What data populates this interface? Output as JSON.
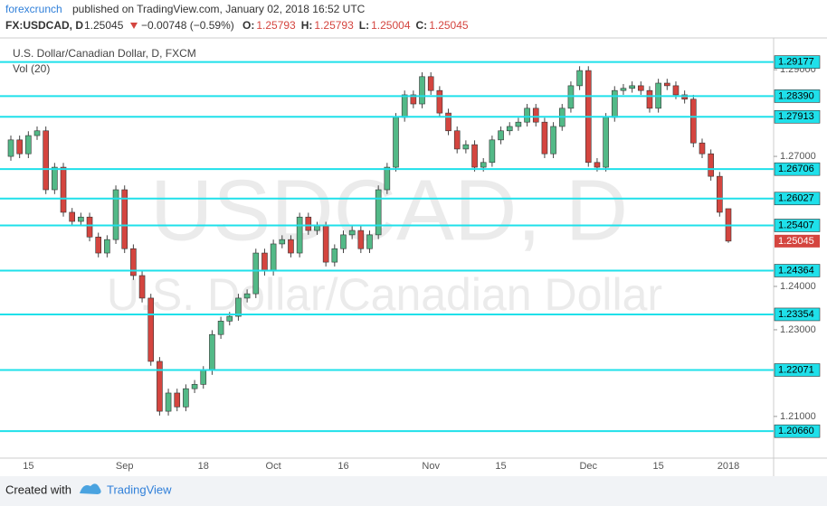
{
  "header": {
    "author": "forexcrunch",
    "published": "published on TradingView.com, January 02, 2018 16:52 UTC",
    "symbol": "FX:USDCAD, D",
    "last": "1.25045",
    "change": "−0.00748 (−0.59%)",
    "ohlc": [
      {
        "key": "O:",
        "value": "1.25793"
      },
      {
        "key": "H:",
        "value": "1.25793"
      },
      {
        "key": "L:",
        "value": "1.25004"
      },
      {
        "key": "C:",
        "value": "1.25045"
      }
    ]
  },
  "chart_data": {
    "type": "candlestick",
    "title": "U.S. Dollar/Canadian Dollar, D, FXCM",
    "subtitle": "Vol (20)",
    "watermark": [
      "USDCAD, D",
      "U.S. Dollar/Canadian Dollar"
    ],
    "up_color": "#53b987",
    "down_color": "#d4453f",
    "level_color": "#1fe0ea",
    "ylim": [
      1.2008,
      1.2967
    ],
    "yticks": [
      {
        "value": 1.29,
        "label": "1.29000"
      },
      {
        "value": 1.27,
        "label": "1.27000"
      },
      {
        "value": 1.24,
        "label": "1.24000"
      },
      {
        "value": 1.23,
        "label": "1.23000"
      },
      {
        "value": 1.21,
        "label": "1.21000"
      }
    ],
    "levels": [
      1.29177,
      {
        "value": 1.2839,
        "label": "1.28390"
      },
      1.27913,
      1.26706,
      1.26027,
      1.25407,
      1.24364,
      1.23354,
      1.22071,
      {
        "value": 1.2066,
        "label": "1.20660"
      }
    ],
    "categories": [
      null,
      null,
      "15",
      null,
      null,
      null,
      null,
      null,
      null,
      null,
      null,
      null,
      null,
      "Sep",
      null,
      null,
      null,
      null,
      null,
      null,
      null,
      null,
      "18",
      null,
      null,
      null,
      null,
      null,
      null,
      null,
      "Oct",
      null,
      null,
      null,
      null,
      null,
      null,
      null,
      "16",
      null,
      null,
      null,
      null,
      null,
      null,
      null,
      null,
      null,
      "Nov",
      null,
      null,
      null,
      null,
      null,
      null,
      null,
      "15",
      null,
      null,
      null,
      null,
      null,
      null,
      null,
      null,
      null,
      "Dec",
      null,
      null,
      null,
      null,
      null,
      null,
      null,
      "15",
      null,
      null,
      null,
      null,
      null,
      null,
      null,
      "2018"
    ],
    "open": [
      1.27,
      1.2738,
      1.2706,
      1.2748,
      1.2759,
      1.2623,
      1.2675,
      1.2571,
      1.255,
      1.256,
      1.2514,
      1.2477,
      1.2508,
      1.2623,
      1.2487,
      1.2425,
      1.2373,
      1.2227,
      1.2112,
      1.2154,
      1.2122,
      1.2164,
      1.2174,
      1.2206,
      1.2289,
      1.232,
      1.2331,
      1.2373,
      1.2383,
      1.2477,
      1.2435,
      1.2498,
      1.2508,
      1.2477,
      1.256,
      1.2529,
      1.2539,
      1.2456,
      1.2487,
      1.2519,
      1.2529,
      1.2487,
      1.2519,
      1.2623,
      1.2675,
      1.279,
      1.2842,
      1.2821,
      1.2884,
      1.2852,
      1.28,
      1.2759,
      1.2717,
      1.2727,
      1.2675,
      1.2686,
      1.2738,
      1.2759,
      1.2769,
      1.2779,
      1.2811,
      1.2779,
      1.2706,
      1.2769,
      1.2811,
      1.2863,
      1.2898,
      1.2686,
      1.2675,
      1.279,
      1.2852,
      1.2857,
      1.2863,
      1.2852,
      1.2811,
      1.2869,
      1.2863,
      1.2842,
      1.2832,
      1.2731,
      1.2706,
      1.2654,
      1.25793
    ],
    "high": [
      1.2748,
      1.2748,
      1.2758,
      1.2769,
      1.2769,
      1.2685,
      1.2685,
      1.2581,
      1.257,
      1.257,
      1.2524,
      1.2518,
      1.2633,
      1.2633,
      1.2497,
      1.2435,
      1.2383,
      1.2237,
      1.2164,
      1.2164,
      1.2174,
      1.2184,
      1.2216,
      1.2299,
      1.233,
      1.2341,
      1.2383,
      1.2393,
      1.2487,
      1.2487,
      1.2508,
      1.2518,
      1.2518,
      1.257,
      1.257,
      1.2549,
      1.2549,
      1.2497,
      1.2529,
      1.2539,
      1.2539,
      1.2529,
      1.2633,
      1.2685,
      1.28,
      1.2852,
      1.2852,
      1.2894,
      1.2894,
      1.2862,
      1.281,
      1.2769,
      1.2737,
      1.2737,
      1.2696,
      1.2748,
      1.2769,
      1.2779,
      1.2789,
      1.2821,
      1.2821,
      1.2789,
      1.2779,
      1.2821,
      1.2873,
      1.2908,
      1.2908,
      1.2696,
      1.28,
      1.2862,
      1.2867,
      1.2873,
      1.2873,
      1.2862,
      1.2879,
      1.2879,
      1.2873,
      1.2852,
      1.2842,
      1.2741,
      1.2716,
      1.2664,
      1.25793
    ],
    "low": [
      1.269,
      1.2696,
      1.2696,
      1.2738,
      1.2613,
      1.2613,
      1.2561,
      1.254,
      1.254,
      1.2504,
      1.2467,
      1.2467,
      1.2498,
      1.2477,
      1.2415,
      1.2363,
      1.2217,
      1.2102,
      1.2102,
      1.2112,
      1.2112,
      1.2154,
      1.2164,
      1.2196,
      1.2279,
      1.231,
      1.2321,
      1.2363,
      1.2373,
      1.2425,
      1.2425,
      1.2488,
      1.2467,
      1.2467,
      1.2519,
      1.2519,
      1.2446,
      1.2446,
      1.2477,
      1.2509,
      1.2477,
      1.2477,
      1.2509,
      1.2613,
      1.2665,
      1.278,
      1.2811,
      1.2811,
      1.2842,
      1.279,
      1.2749,
      1.2707,
      1.2707,
      1.2665,
      1.2665,
      1.2676,
      1.2728,
      1.2749,
      1.2759,
      1.2769,
      1.2769,
      1.2696,
      1.2696,
      1.2759,
      1.2801,
      1.2853,
      1.2676,
      1.2665,
      1.2665,
      1.278,
      1.2842,
      1.2847,
      1.2842,
      1.2801,
      1.2801,
      1.2853,
      1.2832,
      1.2822,
      1.2721,
      1.2696,
      1.2644,
      1.2561,
      1.25004
    ],
    "close": [
      1.2738,
      1.2706,
      1.2748,
      1.2759,
      1.2623,
      1.2675,
      1.2571,
      1.255,
      1.256,
      1.2514,
      1.2477,
      1.2508,
      1.2623,
      1.2487,
      1.2425,
      1.2373,
      1.2227,
      1.2112,
      1.2154,
      1.2122,
      1.2164,
      1.2174,
      1.2206,
      1.2289,
      1.232,
      1.2331,
      1.2373,
      1.2383,
      1.2477,
      1.2435,
      1.2498,
      1.2508,
      1.2477,
      1.256,
      1.2529,
      1.2539,
      1.2456,
      1.2487,
      1.2519,
      1.2529,
      1.2487,
      1.2519,
      1.2623,
      1.2675,
      1.279,
      1.2842,
      1.2821,
      1.2884,
      1.2852,
      1.28,
      1.2759,
      1.2717,
      1.2727,
      1.2675,
      1.2686,
      1.2738,
      1.2759,
      1.2769,
      1.2779,
      1.2811,
      1.2779,
      1.2706,
      1.2769,
      1.2811,
      1.2863,
      1.2898,
      1.2686,
      1.2675,
      1.279,
      1.2852,
      1.2857,
      1.2863,
      1.2852,
      1.2811,
      1.2869,
      1.2863,
      1.2842,
      1.2832,
      1.2731,
      1.2706,
      1.2654,
      1.2571,
      1.25045
    ]
  },
  "footer": {
    "created": "Created with",
    "brand": "TradingView"
  }
}
